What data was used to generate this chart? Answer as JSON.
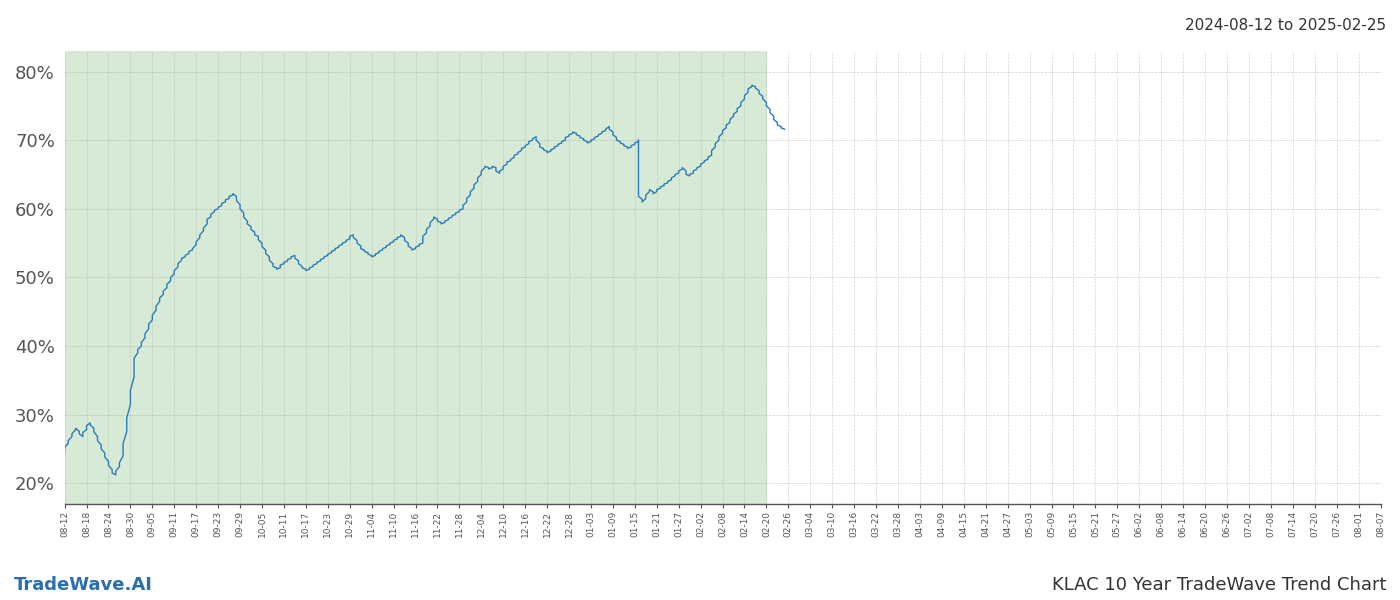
{
  "title_top_right": "2024-08-12 to 2025-02-25",
  "title_bottom_left": "TradeWave.AI",
  "title_bottom_right": "KLAC 10 Year TradeWave Trend Chart",
  "line_color": "#2b7bba",
  "shaded_color": "#d6ead6",
  "background_color": "#ffffff",
  "grid_color": "#aaaaaa",
  "ylim": [
    0.17,
    0.83
  ],
  "yticks": [
    0.2,
    0.3,
    0.4,
    0.5,
    0.6,
    0.7,
    0.8
  ],
  "ytick_labels": [
    "20%",
    "30%",
    "40%",
    "50%",
    "60%",
    "70%",
    "80%"
  ],
  "shade_start_date": "2024-08-12",
  "shade_end_date": "2025-02-20",
  "xaxis_start_date": "2024-08-12",
  "xaxis_end_date": "2025-08-07",
  "data_start_date": "2024-08-12",
  "data_end_date": "2025-02-25",
  "values": [
    0.245,
    0.248,
    0.252,
    0.258,
    0.262,
    0.268,
    0.272,
    0.278,
    0.28,
    0.276,
    0.272,
    0.268,
    0.274,
    0.278,
    0.284,
    0.288,
    0.285,
    0.28,
    0.275,
    0.268,
    0.262,
    0.256,
    0.25,
    0.244,
    0.238,
    0.232,
    0.226,
    0.22,
    0.215,
    0.212,
    0.218,
    0.224,
    0.23,
    0.24,
    0.258,
    0.275,
    0.295,
    0.315,
    0.335,
    0.355,
    0.37,
    0.382,
    0.39,
    0.395,
    0.4,
    0.405,
    0.412,
    0.418,
    0.425,
    0.432,
    0.438,
    0.445,
    0.452,
    0.458,
    0.465,
    0.47,
    0.475,
    0.48,
    0.485,
    0.49,
    0.495,
    0.5,
    0.505,
    0.51,
    0.515,
    0.52,
    0.525,
    0.528,
    0.53,
    0.532,
    0.535,
    0.538,
    0.54,
    0.542,
    0.548,
    0.552,
    0.558,
    0.562,
    0.568,
    0.572,
    0.578,
    0.582,
    0.585,
    0.588,
    0.592,
    0.596,
    0.598,
    0.6,
    0.602,
    0.605,
    0.608,
    0.61,
    0.613,
    0.615,
    0.618,
    0.62,
    0.622,
    0.618,
    0.612,
    0.606,
    0.6,
    0.594,
    0.588,
    0.582,
    0.578,
    0.574,
    0.57,
    0.566,
    0.562,
    0.56,
    0.555,
    0.55,
    0.545,
    0.54,
    0.535,
    0.53,
    0.525,
    0.52,
    0.516,
    0.514,
    0.512,
    0.514,
    0.516,
    0.518,
    0.52,
    0.522,
    0.524,
    0.526,
    0.528,
    0.53,
    0.532,
    0.528,
    0.524,
    0.52,
    0.516,
    0.514,
    0.512,
    0.51,
    0.512,
    0.514,
    0.516,
    0.518,
    0.52,
    0.522,
    0.524,
    0.526,
    0.528,
    0.53,
    0.532,
    0.534,
    0.536,
    0.538,
    0.54,
    0.542,
    0.544,
    0.546,
    0.548,
    0.55,
    0.552,
    0.554,
    0.556,
    0.558,
    0.56,
    0.562,
    0.558,
    0.554,
    0.55,
    0.546,
    0.542,
    0.54,
    0.538,
    0.536,
    0.534,
    0.532,
    0.53,
    0.532,
    0.534,
    0.536,
    0.538,
    0.54,
    0.542,
    0.544,
    0.546,
    0.548,
    0.55,
    0.552,
    0.554,
    0.556,
    0.558,
    0.56,
    0.562,
    0.558,
    0.554,
    0.55,
    0.546,
    0.542,
    0.54,
    0.542,
    0.544,
    0.546,
    0.548,
    0.55,
    0.555,
    0.56,
    0.565,
    0.57,
    0.575,
    0.58,
    0.585,
    0.588,
    0.585,
    0.582,
    0.58,
    0.578,
    0.58,
    0.582,
    0.584,
    0.586,
    0.588,
    0.59,
    0.592,
    0.594,
    0.596,
    0.598,
    0.6,
    0.605,
    0.61,
    0.615,
    0.62,
    0.625,
    0.63,
    0.635,
    0.64,
    0.645,
    0.65,
    0.655,
    0.66,
    0.662,
    0.66,
    0.658,
    0.66,
    0.662,
    0.66,
    0.658,
    0.655,
    0.652,
    0.655,
    0.658,
    0.662,
    0.665,
    0.668,
    0.67,
    0.672,
    0.675,
    0.678,
    0.68,
    0.682,
    0.685,
    0.688,
    0.69,
    0.692,
    0.695,
    0.698,
    0.7,
    0.702,
    0.705,
    0.7,
    0.695,
    0.69,
    0.688,
    0.686,
    0.684,
    0.682,
    0.684,
    0.686,
    0.688,
    0.69,
    0.692,
    0.694,
    0.696,
    0.698,
    0.7,
    0.702,
    0.704,
    0.706,
    0.708,
    0.71,
    0.712,
    0.71,
    0.708,
    0.706,
    0.704,
    0.702,
    0.7,
    0.698,
    0.696,
    0.698,
    0.7,
    0.702,
    0.704,
    0.706,
    0.708,
    0.71,
    0.712,
    0.714,
    0.716,
    0.72,
    0.716,
    0.712,
    0.708,
    0.704,
    0.7,
    0.698,
    0.696,
    0.694,
    0.692,
    0.69,
    0.688,
    0.69,
    0.692,
    0.694,
    0.696,
    0.698,
    0.7,
    0.618,
    0.614,
    0.61,
    0.615,
    0.62,
    0.625,
    0.628,
    0.625,
    0.622,
    0.625,
    0.628,
    0.63,
    0.632,
    0.634,
    0.636,
    0.638,
    0.64,
    0.642,
    0.645,
    0.648,
    0.65,
    0.652,
    0.655,
    0.658,
    0.66,
    0.655,
    0.65,
    0.648,
    0.65,
    0.652,
    0.655,
    0.658,
    0.66,
    0.662,
    0.665,
    0.668,
    0.67,
    0.672,
    0.675,
    0.678,
    0.68,
    0.685,
    0.69,
    0.695,
    0.7,
    0.705,
    0.71,
    0.714,
    0.718,
    0.722,
    0.726,
    0.73,
    0.735,
    0.738,
    0.742,
    0.746,
    0.75,
    0.755,
    0.76,
    0.765,
    0.77,
    0.775,
    0.778,
    0.78,
    0.778,
    0.776,
    0.772,
    0.768,
    0.764,
    0.76,
    0.755,
    0.75,
    0.745,
    0.74,
    0.735,
    0.73,
    0.726,
    0.722,
    0.72,
    0.718,
    0.716
  ]
}
